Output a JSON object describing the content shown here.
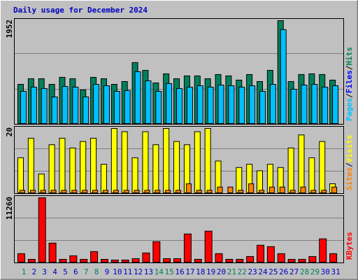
{
  "chart_data": [
    {
      "type": "bar",
      "title": "Daily usage for December 2024",
      "title_color": "#0000c0",
      "ylim": [
        0,
        1952
      ],
      "yticks": [
        1952
      ],
      "legend_separator": "/",
      "series": [
        {
          "name": "Pages",
          "color": "#00c0ff",
          "values": [
            620,
            700,
            673,
            515,
            713,
            700,
            515,
            752,
            726,
            620,
            634,
            990,
            818,
            620,
            766,
            673,
            700,
            726,
            700,
            739,
            726,
            700,
            726,
            620,
            752,
            1782,
            660,
            739,
            752,
            700,
            726
          ]
        },
        {
          "name": "Files",
          "color": "#0000ff",
          "values": [
            null,
            null,
            null,
            null,
            null,
            null,
            null,
            null,
            null,
            null,
            null,
            null,
            null,
            null,
            null,
            null,
            null,
            null,
            null,
            null,
            null,
            null,
            null,
            null,
            null,
            null,
            null,
            null,
            null,
            null,
            null
          ]
        },
        {
          "name": "Hits",
          "color": "#00805c",
          "values": [
            752,
            858,
            858,
            752,
            884,
            858,
            647,
            884,
            858,
            752,
            805,
            1162,
            1016,
            779,
            950,
            858,
            911,
            911,
            858,
            937,
            911,
            832,
            937,
            805,
            1016,
            1952,
            805,
            937,
            950,
            937,
            832
          ]
        }
      ]
    },
    {
      "type": "bar",
      "ylim": [
        0,
        20
      ],
      "yticks": [
        20
      ],
      "legend_separator": "/",
      "series": [
        {
          "name": "Sites",
          "color": "#ff8000",
          "values": [
            1,
            1,
            1,
            1,
            1,
            1,
            1,
            1,
            1,
            1,
            1,
            1,
            1,
            1,
            1,
            1,
            3,
            1,
            1,
            2,
            2,
            1,
            3,
            1,
            2,
            2,
            1,
            2,
            1,
            1,
            2
          ]
        },
        {
          "name": "Visits",
          "color": "#ffff00",
          "values": [
            11,
            17,
            6,
            15,
            17,
            14,
            16,
            17,
            9,
            20,
            19,
            11,
            19,
            15,
            20,
            16,
            15,
            19,
            20,
            10,
            null,
            8,
            9,
            7,
            9,
            8,
            14,
            18,
            11,
            16,
            3
          ]
        }
      ]
    },
    {
      "type": "bar",
      "ylim": [
        0,
        11260
      ],
      "yticks": [
        11260
      ],
      "legend_separator": "/",
      "categories": [
        "1",
        "2",
        "3",
        "4",
        "5",
        "6",
        "7",
        "8",
        "9",
        "10",
        "11",
        "12",
        "13",
        "14",
        "15",
        "16",
        "17",
        "18",
        "19",
        "20",
        "21",
        "22",
        "23",
        "24",
        "25",
        "26",
        "27",
        "28",
        "29",
        "30",
        "31"
      ],
      "category_colors": [
        "#00805c",
        "#0000c0",
        "#0000c0",
        "#0000c0",
        "#0000c0",
        "#0000c0",
        "#00805c",
        "#00805c",
        "#0000c0",
        "#0000c0",
        "#0000c0",
        "#0000c0",
        "#0000c0",
        "#00805c",
        "#00805c",
        "#0000c0",
        "#0000c0",
        "#0000c0",
        "#0000c0",
        "#0000c0",
        "#00805c",
        "#00805c",
        "#0000c0",
        "#0000c0",
        "#0000c0",
        "#0000c0",
        "#0000c0",
        "#00805c",
        "#00805c",
        "#0000c0",
        "#0000c0"
      ],
      "series": [
        {
          "name": "KBytes",
          "color": "#ff0000",
          "values": [
            1590,
            610,
            11260,
            3420,
            610,
            1220,
            610,
            1950,
            610,
            490,
            490,
            730,
            1710,
            3660,
            730,
            730,
            5000,
            610,
            5490,
            1590,
            610,
            610,
            1100,
            3050,
            2810,
            1590,
            610,
            610,
            1100,
            4150,
            1590
          ]
        }
      ]
    }
  ]
}
